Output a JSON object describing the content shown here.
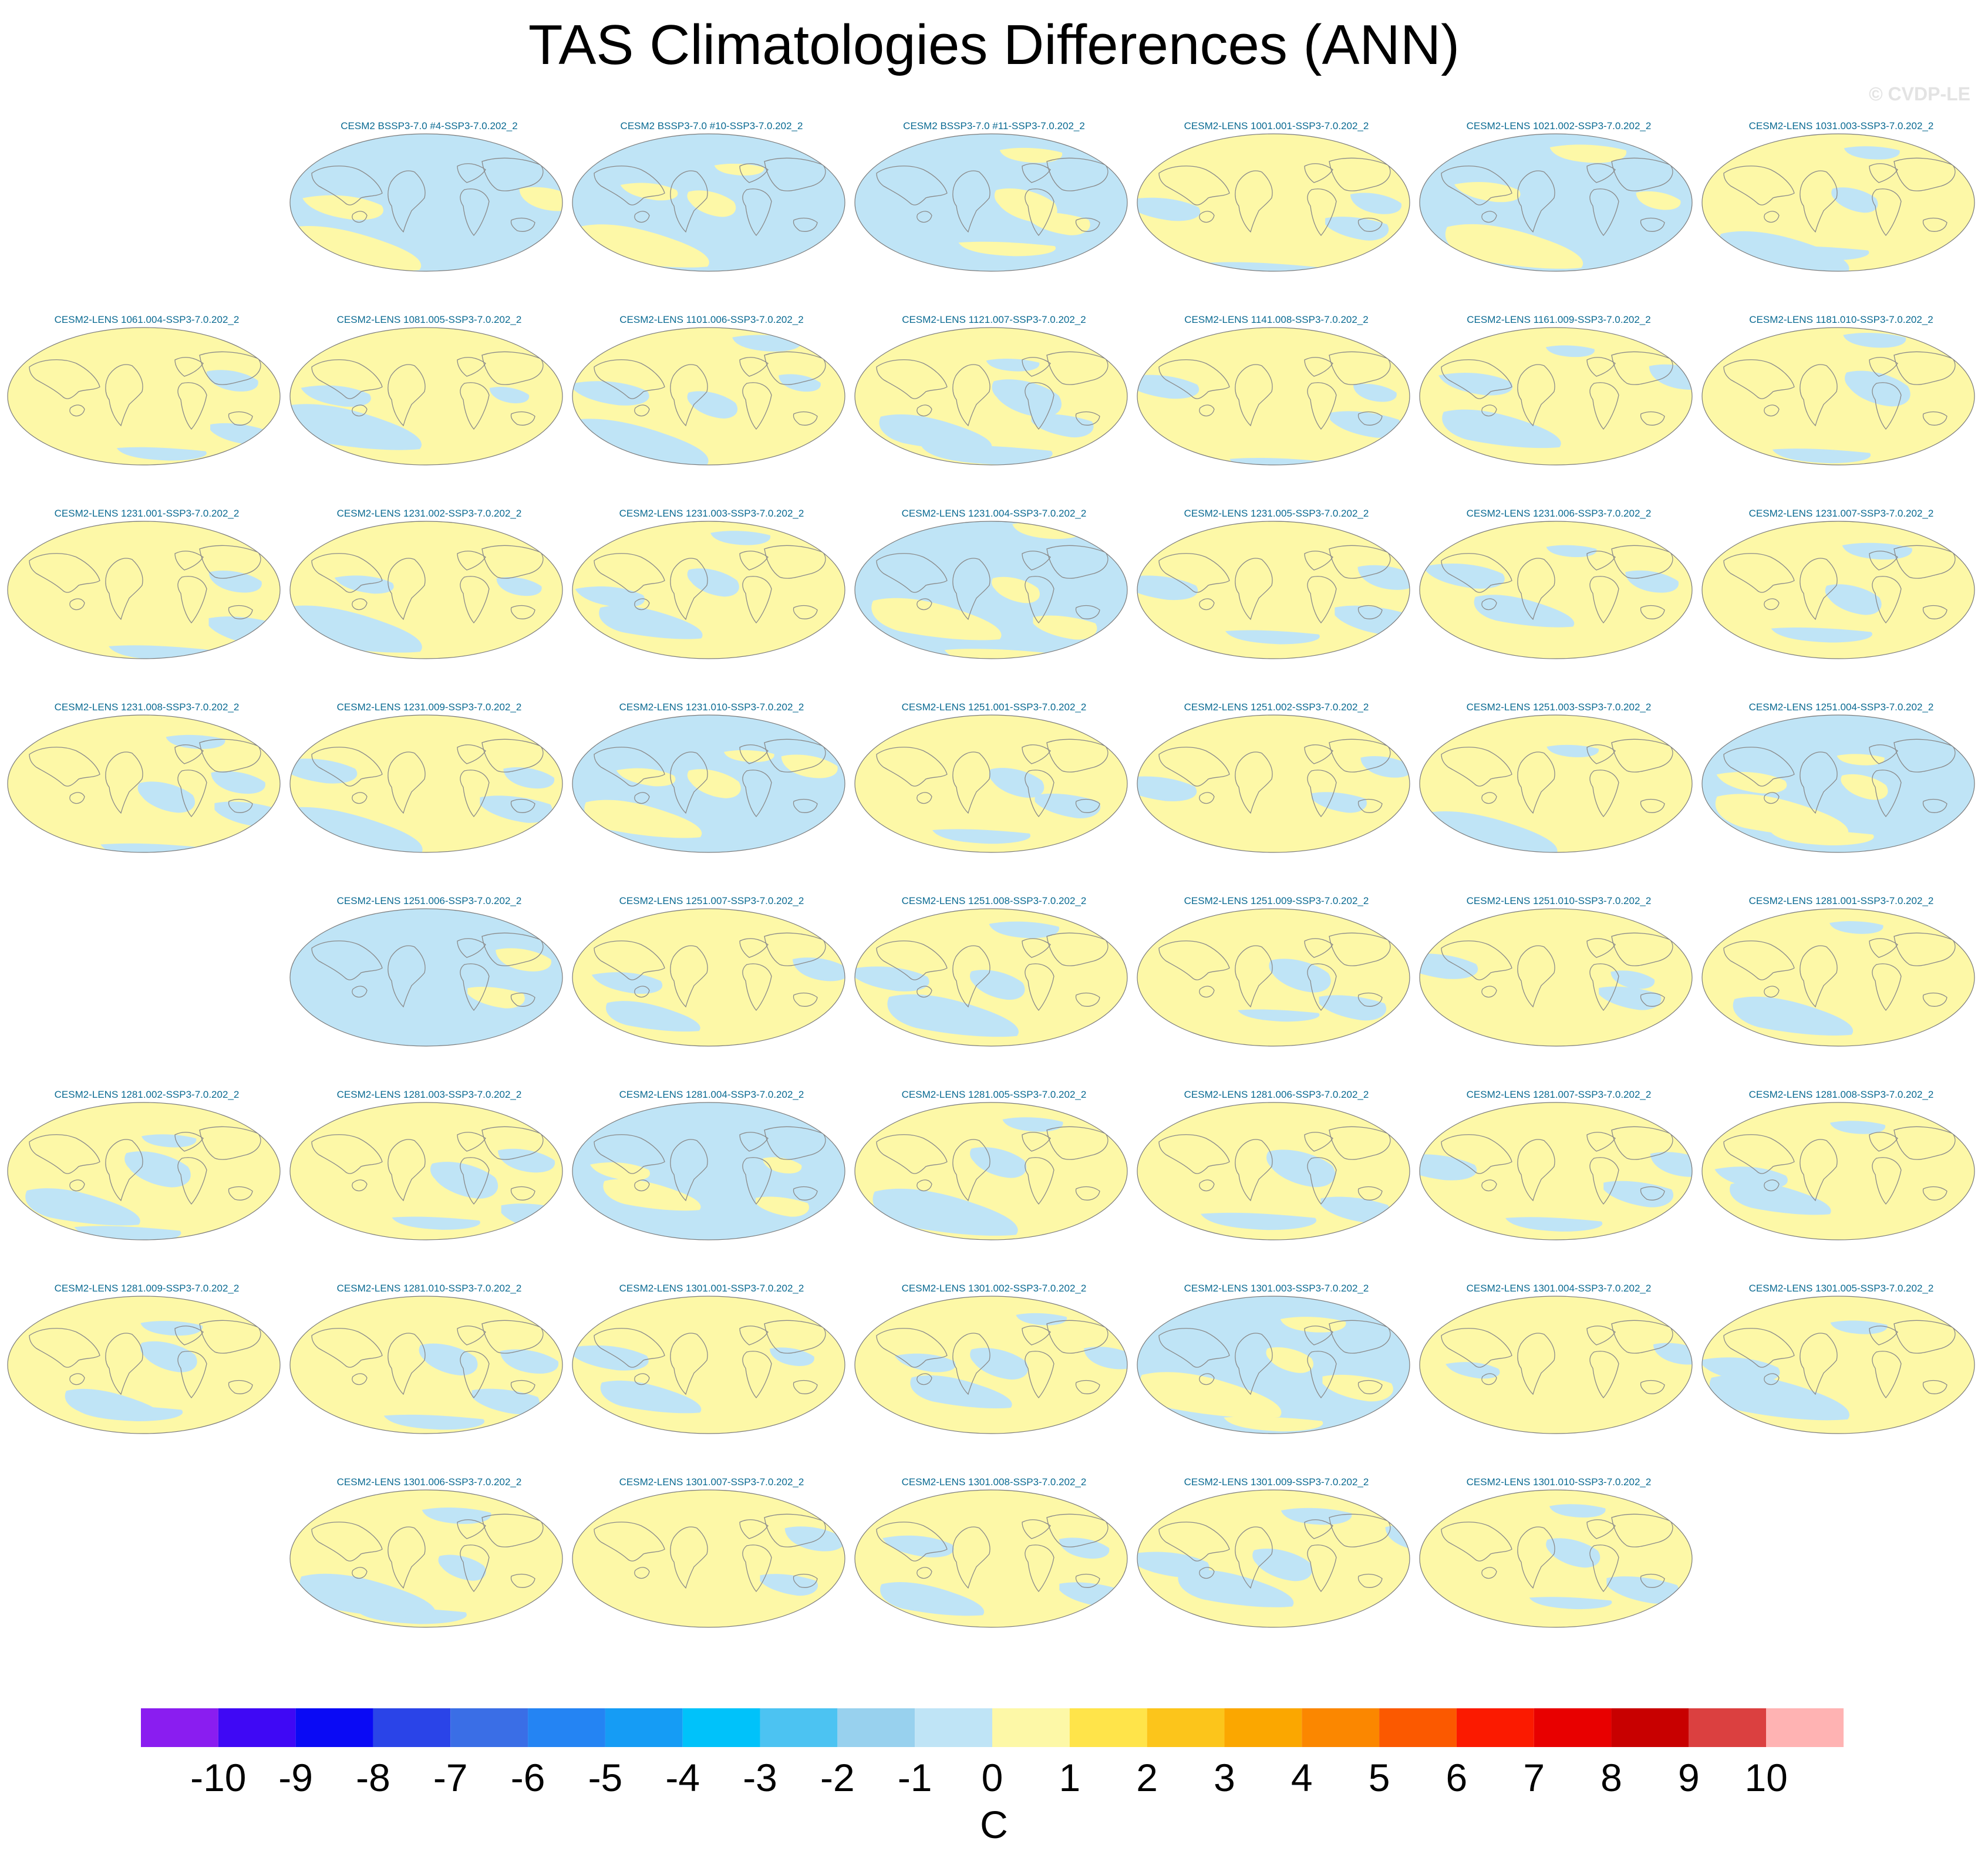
{
  "title": "TAS Climatologies Differences (ANN)",
  "watermark": "© CVDP-LE",
  "panels": [
    {
      "row": 0,
      "col": 1,
      "label": "CESM2 BSSP3-7.0 #4-SSP3-7.0.202_2",
      "warm_fraction": 0.25
    },
    {
      "row": 0,
      "col": 2,
      "label": "CESM2 BSSP3-7.0 #10-SSP3-7.0.202_2",
      "warm_fraction": 0.4
    },
    {
      "row": 0,
      "col": 3,
      "label": "CESM2 BSSP3-7.0 #11-SSP3-7.0.202_2",
      "warm_fraction": 0.35
    },
    {
      "row": 0,
      "col": 4,
      "label": "CESM2-LENS 1001.001-SSP3-7.0.202_2",
      "warm_fraction": 0.65
    },
    {
      "row": 0,
      "col": 5,
      "label": "CESM2-LENS 1021.002-SSP3-7.0.202_2",
      "warm_fraction": 0.4
    },
    {
      "row": 0,
      "col": 6,
      "label": "CESM2-LENS 1031.003-SSP3-7.0.202_2",
      "warm_fraction": 0.6
    },
    {
      "row": 1,
      "col": 0,
      "label": "CESM2-LENS 1061.004-SSP3-7.0.202_2",
      "warm_fraction": 0.7
    },
    {
      "row": 1,
      "col": 1,
      "label": "CESM2-LENS 1081.005-SSP3-7.0.202_2",
      "warm_fraction": 0.7
    },
    {
      "row": 1,
      "col": 2,
      "label": "CESM2-LENS 1101.006-SSP3-7.0.202_2",
      "warm_fraction": 0.55
    },
    {
      "row": 1,
      "col": 3,
      "label": "CESM2-LENS 1121.007-SSP3-7.0.202_2",
      "warm_fraction": 0.5
    },
    {
      "row": 1,
      "col": 4,
      "label": "CESM2-LENS 1141.008-SSP3-7.0.202_2",
      "warm_fraction": 0.65
    },
    {
      "row": 1,
      "col": 5,
      "label": "CESM2-LENS 1161.009-SSP3-7.0.202_2",
      "warm_fraction": 0.6
    },
    {
      "row": 1,
      "col": 6,
      "label": "CESM2-LENS 1181.010-SSP3-7.0.202_2",
      "warm_fraction": 0.75
    },
    {
      "row": 2,
      "col": 0,
      "label": "CESM2-LENS 1231.001-SSP3-7.0.202_2",
      "warm_fraction": 0.75
    },
    {
      "row": 2,
      "col": 1,
      "label": "CESM2-LENS 1231.002-SSP3-7.0.202_2",
      "warm_fraction": 0.7
    },
    {
      "row": 2,
      "col": 2,
      "label": "CESM2-LENS 1231.003-SSP3-7.0.202_2",
      "warm_fraction": 0.6
    },
    {
      "row": 2,
      "col": 3,
      "label": "CESM2-LENS 1231.004-SSP3-7.0.202_2",
      "warm_fraction": 0.45
    },
    {
      "row": 2,
      "col": 4,
      "label": "CESM2-LENS 1231.005-SSP3-7.0.202_2",
      "warm_fraction": 0.65
    },
    {
      "row": 2,
      "col": 5,
      "label": "CESM2-LENS 1231.006-SSP3-7.0.202_2",
      "warm_fraction": 0.6
    },
    {
      "row": 2,
      "col": 6,
      "label": "CESM2-LENS 1231.007-SSP3-7.0.202_2",
      "warm_fraction": 0.7
    },
    {
      "row": 3,
      "col": 0,
      "label": "CESM2-LENS 1231.008-SSP3-7.0.202_2",
      "warm_fraction": 0.5
    },
    {
      "row": 3,
      "col": 1,
      "label": "CESM2-LENS 1231.009-SSP3-7.0.202_2",
      "warm_fraction": 0.6
    },
    {
      "row": 3,
      "col": 2,
      "label": "CESM2-LENS 1231.010-SSP3-7.0.202_2",
      "warm_fraction": 0.45
    },
    {
      "row": 3,
      "col": 3,
      "label": "CESM2-LENS 1251.001-SSP3-7.0.202_2",
      "warm_fraction": 0.75
    },
    {
      "row": 3,
      "col": 4,
      "label": "CESM2-LENS 1251.002-SSP3-7.0.202_2",
      "warm_fraction": 0.75
    },
    {
      "row": 3,
      "col": 5,
      "label": "CESM2-LENS 1251.003-SSP3-7.0.202_2",
      "warm_fraction": 0.8
    },
    {
      "row": 3,
      "col": 6,
      "label": "CESM2-LENS 1251.004-SSP3-7.0.202_2",
      "warm_fraction": 0.45
    },
    {
      "row": 4,
      "col": 1,
      "label": "CESM2-LENS 1251.006-SSP3-7.0.202_2",
      "warm_fraction": 0.2
    },
    {
      "row": 4,
      "col": 2,
      "label": "CESM2-LENS 1251.007-SSP3-7.0.202_2",
      "warm_fraction": 0.75
    },
    {
      "row": 4,
      "col": 3,
      "label": "CESM2-LENS 1251.008-SSP3-7.0.202_2",
      "warm_fraction": 0.65
    },
    {
      "row": 4,
      "col": 4,
      "label": "CESM2-LENS 1251.009-SSP3-7.0.202_2",
      "warm_fraction": 0.7
    },
    {
      "row": 4,
      "col": 5,
      "label": "CESM2-LENS 1251.010-SSP3-7.0.202_2",
      "warm_fraction": 0.75
    },
    {
      "row": 4,
      "col": 6,
      "label": "CESM2-LENS 1281.001-SSP3-7.0.202_2",
      "warm_fraction": 0.8
    },
    {
      "row": 5,
      "col": 0,
      "label": "CESM2-LENS 1281.002-SSP3-7.0.202_2",
      "warm_fraction": 0.65
    },
    {
      "row": 5,
      "col": 1,
      "label": "CESM2-LENS 1281.003-SSP3-7.0.202_2",
      "warm_fraction": 0.6
    },
    {
      "row": 5,
      "col": 2,
      "label": "CESM2-LENS 1281.004-SSP3-7.0.202_2",
      "warm_fraction": 0.4
    },
    {
      "row": 5,
      "col": 3,
      "label": "CESM2-LENS 1281.005-SSP3-7.0.202_2",
      "warm_fraction": 0.7
    },
    {
      "row": 5,
      "col": 4,
      "label": "CESM2-LENS 1281.006-SSP3-7.0.202_2",
      "warm_fraction": 0.75
    },
    {
      "row": 5,
      "col": 5,
      "label": "CESM2-LENS 1281.007-SSP3-7.0.202_2",
      "warm_fraction": 0.65
    },
    {
      "row": 5,
      "col": 6,
      "label": "CESM2-LENS 1281.008-SSP3-7.0.202_2",
      "warm_fraction": 0.7
    },
    {
      "row": 6,
      "col": 0,
      "label": "CESM2-LENS 1281.009-SSP3-7.0.202_2",
      "warm_fraction": 0.65
    },
    {
      "row": 6,
      "col": 1,
      "label": "CESM2-LENS 1281.010-SSP3-7.0.202_2",
      "warm_fraction": 0.65
    },
    {
      "row": 6,
      "col": 2,
      "label": "CESM2-LENS 1301.001-SSP3-7.0.202_2",
      "warm_fraction": 0.75
    },
    {
      "row": 6,
      "col": 3,
      "label": "CESM2-LENS 1301.002-SSP3-7.0.202_2",
      "warm_fraction": 0.55
    },
    {
      "row": 6,
      "col": 4,
      "label": "CESM2-LENS 1301.003-SSP3-7.0.202_2",
      "warm_fraction": 0.45
    },
    {
      "row": 6,
      "col": 5,
      "label": "CESM2-LENS 1301.004-SSP3-7.0.202_2",
      "warm_fraction": 0.8
    },
    {
      "row": 6,
      "col": 6,
      "label": "CESM2-LENS 1301.005-SSP3-7.0.202_2",
      "warm_fraction": 0.75
    },
    {
      "row": 7,
      "col": 1,
      "label": "CESM2-LENS 1301.006-SSP3-7.0.202_2",
      "warm_fraction": 0.6
    },
    {
      "row": 7,
      "col": 2,
      "label": "CESM2-LENS 1301.007-SSP3-7.0.202_2",
      "warm_fraction": 0.8
    },
    {
      "row": 7,
      "col": 3,
      "label": "CESM2-LENS 1301.008-SSP3-7.0.202_2",
      "warm_fraction": 0.6
    },
    {
      "row": 7,
      "col": 4,
      "label": "CESM2-LENS 1301.009-SSP3-7.0.202_2",
      "warm_fraction": 0.5
    },
    {
      "row": 7,
      "col": 5,
      "label": "CESM2-LENS 1301.010-SSP3-7.0.202_2",
      "warm_fraction": 0.6
    }
  ],
  "chart_data": {
    "type": "heatmap",
    "title": "TAS Climatologies Differences (ANN)",
    "projection": "robinson-like global map panels",
    "colorbar": {
      "units": "C",
      "levels": [
        -10,
        -9,
        -8,
        -7,
        -6,
        -5,
        -4,
        -3,
        -2,
        -1,
        0,
        1,
        2,
        3,
        4,
        5,
        6,
        7,
        8,
        9,
        10
      ],
      "colors": [
        "#8a1df0",
        "#3f08f5",
        "#0a0af5",
        "#2a44e8",
        "#3a6ee6",
        "#2484f3",
        "#159cf5",
        "#00c2fa",
        "#4cc3f2",
        "#98d1ee",
        "#bfe4f6",
        "#fdf8a7",
        "#ffe44a",
        "#fcc51b",
        "#fba700",
        "#fb8700",
        "#fb5900",
        "#fb1a00",
        "#e80000",
        "#c80000",
        "#db4040",
        "#ffb3b3"
      ]
    },
    "panel_colors": {
      "cool": "#bfe4f6",
      "warm": "#fdf8a7",
      "coast": "#8a8a8a",
      "title": "#0a6a92"
    }
  }
}
